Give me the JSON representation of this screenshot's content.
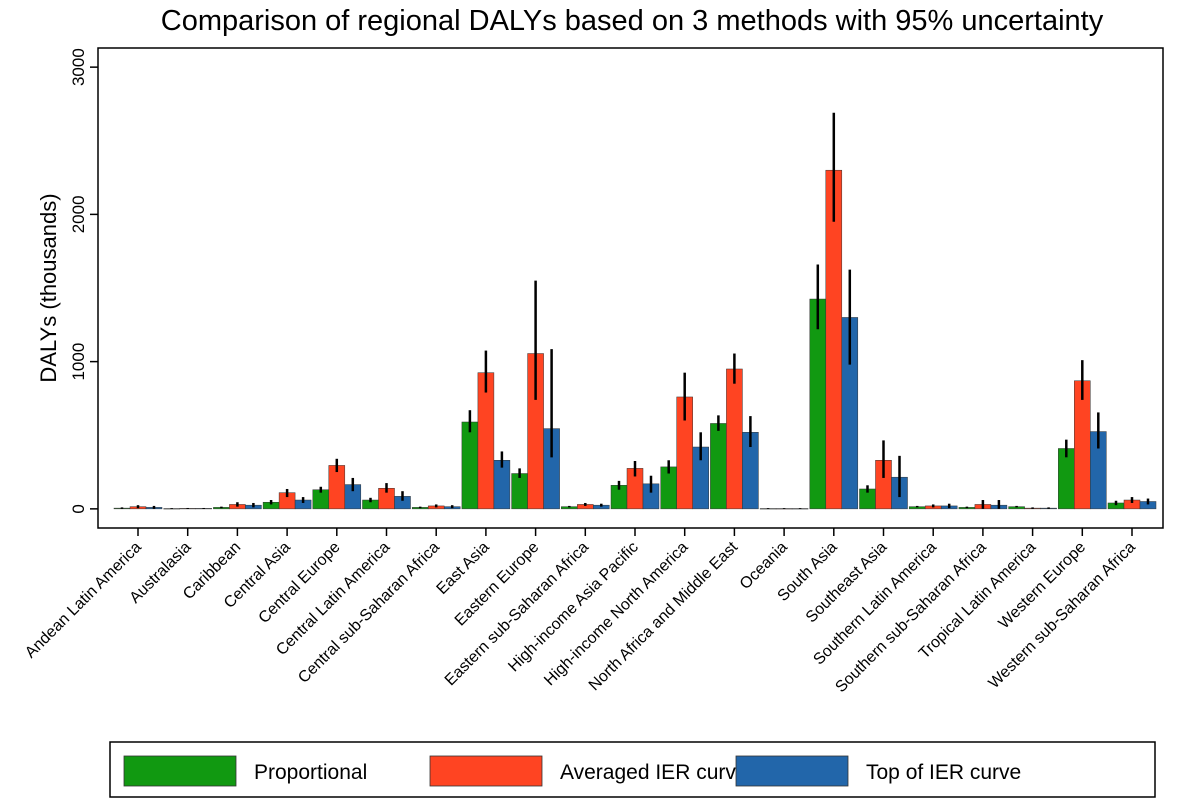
{
  "chart_data": {
    "type": "bar",
    "title": "Comparison of regional DALYs based on 3 methods with 95% uncertainty",
    "y_label": "DALYs (thousands)",
    "categories": [
      "Andean Latin America",
      "Australasia",
      "Caribbean",
      "Central Asia",
      "Central Europe",
      "Central Latin America",
      "Central sub-Saharan Africa",
      "East Asia",
      "Eastern Europe",
      "Eastern sub-Saharan Africa",
      "High-income Asia Pacific",
      "High-income North America",
      "North Africa and Middle East",
      "Oceania",
      "South Asia",
      "Southeast Asia",
      "Southern Latin America",
      "Southern sub-Saharan Africa",
      "Tropical Latin America",
      "Western Europe",
      "Western sub-Saharan Africa"
    ],
    "series": [
      {
        "name": "Proportional",
        "color": "#119911",
        "values": [
          5,
          2,
          10,
          45,
          130,
          60,
          10,
          590,
          240,
          15,
          160,
          285,
          580,
          2,
          1425,
          135,
          15,
          10,
          15,
          410,
          40
        ],
        "lower": [
          0,
          0,
          5,
          30,
          110,
          45,
          5,
          520,
          210,
          10,
          130,
          240,
          530,
          0,
          1220,
          110,
          10,
          5,
          10,
          350,
          25
        ],
        "upper": [
          10,
          5,
          15,
          60,
          150,
          75,
          15,
          670,
          275,
          20,
          190,
          330,
          635,
          5,
          1660,
          160,
          20,
          15,
          20,
          470,
          55
        ]
      },
      {
        "name": "Averaged IER curve",
        "color": "#ff4422",
        "values": [
          15,
          3,
          30,
          110,
          295,
          140,
          20,
          925,
          1055,
          30,
          275,
          760,
          950,
          2,
          2300,
          330,
          20,
          30,
          5,
          870,
          60
        ],
        "lower": [
          5,
          0,
          15,
          80,
          250,
          110,
          10,
          790,
          740,
          20,
          220,
          600,
          850,
          0,
          1950,
          210,
          10,
          0,
          0,
          740,
          40
        ],
        "upper": [
          25,
          6,
          45,
          135,
          340,
          175,
          30,
          1075,
          1550,
          40,
          325,
          925,
          1055,
          5,
          2690,
          465,
          30,
          60,
          10,
          1010,
          80
        ]
      },
      {
        "name": "Top of IER curve",
        "color": "#2266aa",
        "values": [
          10,
          3,
          25,
          60,
          165,
          85,
          15,
          330,
          545,
          25,
          170,
          420,
          520,
          2,
          1300,
          215,
          20,
          25,
          5,
          525,
          50
        ],
        "lower": [
          0,
          0,
          10,
          40,
          120,
          55,
          5,
          280,
          350,
          15,
          110,
          330,
          420,
          0,
          980,
          80,
          5,
          0,
          0,
          410,
          30
        ],
        "upper": [
          20,
          6,
          40,
          80,
          210,
          120,
          25,
          390,
          1085,
          35,
          225,
          520,
          630,
          5,
          1625,
          360,
          35,
          60,
          10,
          655,
          70
        ]
      }
    ],
    "ylim": [
      -130,
      3130
    ],
    "yticks": [
      0,
      1000,
      2000,
      3000
    ]
  }
}
